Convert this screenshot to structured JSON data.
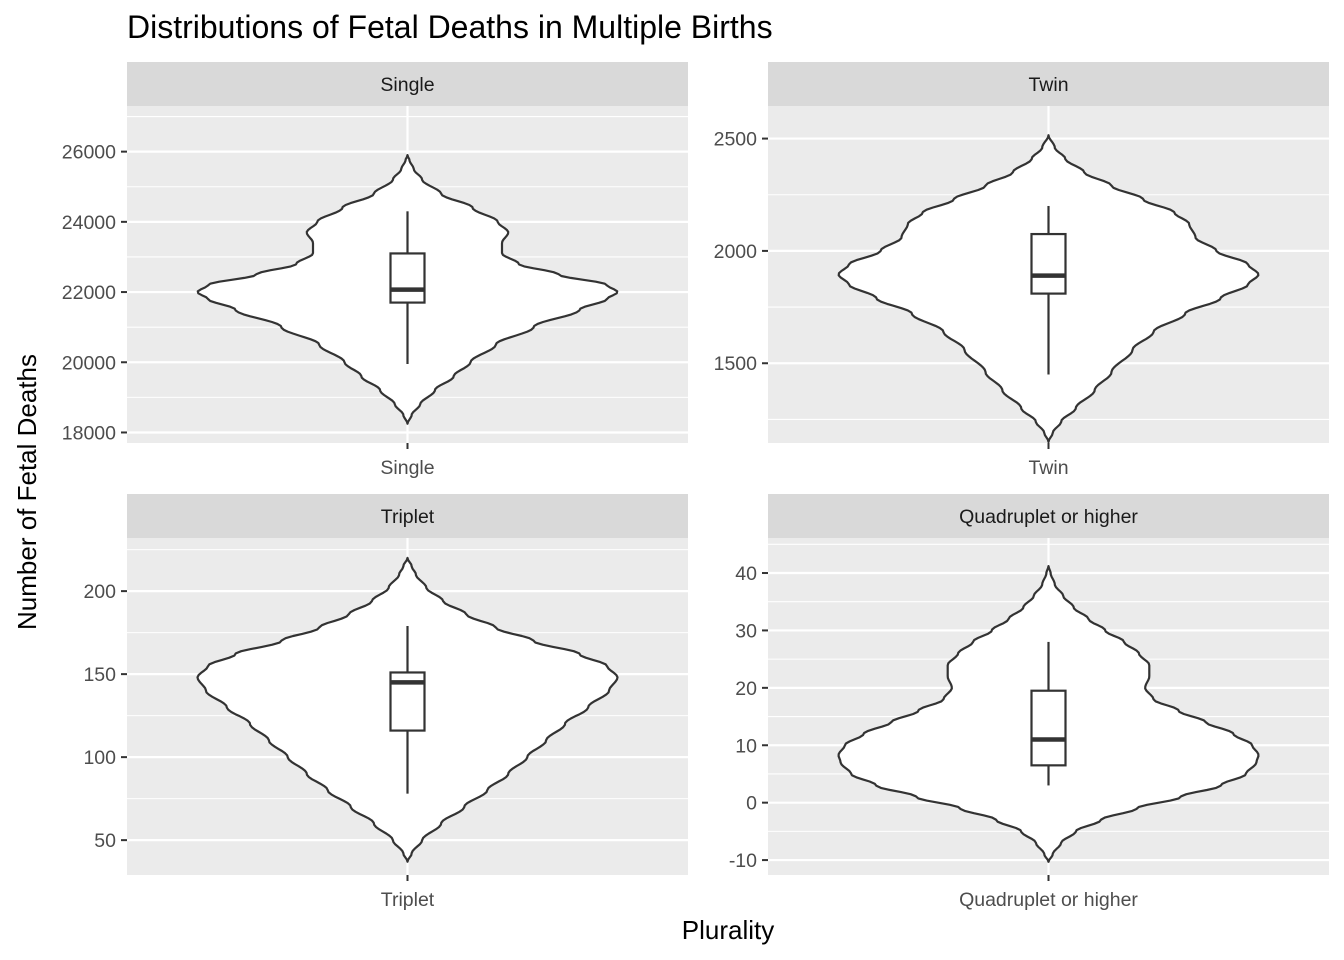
{
  "chart_data": {
    "type": "violin",
    "title": "Distributions of Fetal Deaths in Multiple Births",
    "xlabel": "Plurality",
    "ylabel": "Number of Fetal Deaths",
    "grid": true,
    "facets": [
      {
        "label": "Single",
        "category": "Single",
        "ylim": [
          17700,
          27300
        ],
        "major_ticks": [
          18000,
          20000,
          22000,
          24000,
          26000
        ],
        "minor_ticks": [
          19000,
          21000,
          23000,
          25000,
          27000
        ],
        "violin_range": [
          18250,
          25900
        ],
        "violin_profile": [
          [
            18250,
            0
          ],
          [
            18500,
            0.02
          ],
          [
            18800,
            0.06
          ],
          [
            19200,
            0.13
          ],
          [
            19600,
            0.22
          ],
          [
            20000,
            0.3
          ],
          [
            20500,
            0.42
          ],
          [
            21000,
            0.6
          ],
          [
            21500,
            0.82
          ],
          [
            21800,
            0.95
          ],
          [
            22000,
            1.0
          ],
          [
            22200,
            0.95
          ],
          [
            22500,
            0.72
          ],
          [
            22800,
            0.53
          ],
          [
            23100,
            0.45
          ],
          [
            23400,
            0.45
          ],
          [
            23700,
            0.48
          ],
          [
            24000,
            0.43
          ],
          [
            24400,
            0.31
          ],
          [
            24800,
            0.16
          ],
          [
            25200,
            0.07
          ],
          [
            25500,
            0.03
          ],
          [
            25750,
            0.01
          ],
          [
            25900,
            0
          ]
        ],
        "box": {
          "lower_whisker": 19950,
          "q1": 21700,
          "median": 22070,
          "q3": 23100,
          "upper_whisker": 24300
        }
      },
      {
        "label": "Twin",
        "category": "Twin",
        "ylim": [
          1145,
          2645
        ],
        "major_ticks": [
          1500,
          2000,
          2500
        ],
        "minor_ticks": [
          1250,
          1750,
          2250
        ],
        "violin_range": [
          1150,
          2515
        ],
        "violin_profile": [
          [
            1150,
            0
          ],
          [
            1190,
            0.02
          ],
          [
            1240,
            0.06
          ],
          [
            1300,
            0.13
          ],
          [
            1380,
            0.22
          ],
          [
            1460,
            0.3
          ],
          [
            1560,
            0.4
          ],
          [
            1640,
            0.5
          ],
          [
            1720,
            0.65
          ],
          [
            1790,
            0.82
          ],
          [
            1850,
            0.95
          ],
          [
            1895,
            1.0
          ],
          [
            1940,
            0.95
          ],
          [
            2000,
            0.8
          ],
          [
            2060,
            0.7
          ],
          [
            2120,
            0.67
          ],
          [
            2170,
            0.6
          ],
          [
            2230,
            0.45
          ],
          [
            2290,
            0.3
          ],
          [
            2350,
            0.17
          ],
          [
            2410,
            0.08
          ],
          [
            2460,
            0.03
          ],
          [
            2515,
            0
          ]
        ],
        "box": {
          "lower_whisker": 1450,
          "q1": 1810,
          "median": 1890,
          "q3": 2075,
          "upper_whisker": 2200
        }
      },
      {
        "label": "Triplet",
        "category": "Triplet",
        "ylim": [
          29,
          232
        ],
        "major_ticks": [
          50,
          100,
          150,
          200
        ],
        "minor_ticks": [
          75,
          125,
          175,
          225
        ],
        "violin_range": [
          37,
          220
        ],
        "violin_profile": [
          [
            37,
            0
          ],
          [
            42,
            0.02
          ],
          [
            50,
            0.07
          ],
          [
            60,
            0.16
          ],
          [
            70,
            0.27
          ],
          [
            80,
            0.38
          ],
          [
            90,
            0.48
          ],
          [
            100,
            0.57
          ],
          [
            110,
            0.66
          ],
          [
            120,
            0.75
          ],
          [
            130,
            0.86
          ],
          [
            140,
            0.96
          ],
          [
            148,
            1.0
          ],
          [
            155,
            0.95
          ],
          [
            162,
            0.82
          ],
          [
            170,
            0.6
          ],
          [
            178,
            0.42
          ],
          [
            186,
            0.28
          ],
          [
            194,
            0.17
          ],
          [
            202,
            0.09
          ],
          [
            210,
            0.04
          ],
          [
            215,
            0.02
          ],
          [
            220,
            0
          ]
        ],
        "box": {
          "lower_whisker": 78,
          "q1": 116,
          "median": 145,
          "q3": 151,
          "upper_whisker": 179
        }
      },
      {
        "label": "Quadruplet or higher",
        "category": "Quadruplet or higher",
        "ylim": [
          -12.6,
          46.1
        ],
        "major_ticks": [
          -10,
          0,
          10,
          20,
          30,
          40
        ],
        "minor_ticks": [
          -5,
          5,
          15,
          25,
          35,
          45
        ],
        "violin_range": [
          -10.3,
          41.2
        ],
        "violin_profile": [
          [
            -10.3,
            0
          ],
          [
            -9,
            0.02
          ],
          [
            -7,
            0.06
          ],
          [
            -5,
            0.13
          ],
          [
            -3,
            0.25
          ],
          [
            -1,
            0.42
          ],
          [
            1,
            0.63
          ],
          [
            3,
            0.82
          ],
          [
            5,
            0.94
          ],
          [
            7,
            0.99
          ],
          [
            8.3,
            1.0
          ],
          [
            10,
            0.97
          ],
          [
            12,
            0.88
          ],
          [
            14,
            0.75
          ],
          [
            16,
            0.62
          ],
          [
            18,
            0.5
          ],
          [
            20,
            0.46
          ],
          [
            22,
            0.48
          ],
          [
            24,
            0.48
          ],
          [
            26,
            0.43
          ],
          [
            28,
            0.36
          ],
          [
            30,
            0.27
          ],
          [
            32,
            0.19
          ],
          [
            34,
            0.12
          ],
          [
            36,
            0.07
          ],
          [
            38,
            0.03
          ],
          [
            40,
            0.01
          ],
          [
            41.2,
            0
          ]
        ],
        "box": {
          "lower_whisker": 3,
          "q1": 6.5,
          "median": 11,
          "q3": 19.5,
          "upper_whisker": 28
        }
      }
    ]
  }
}
